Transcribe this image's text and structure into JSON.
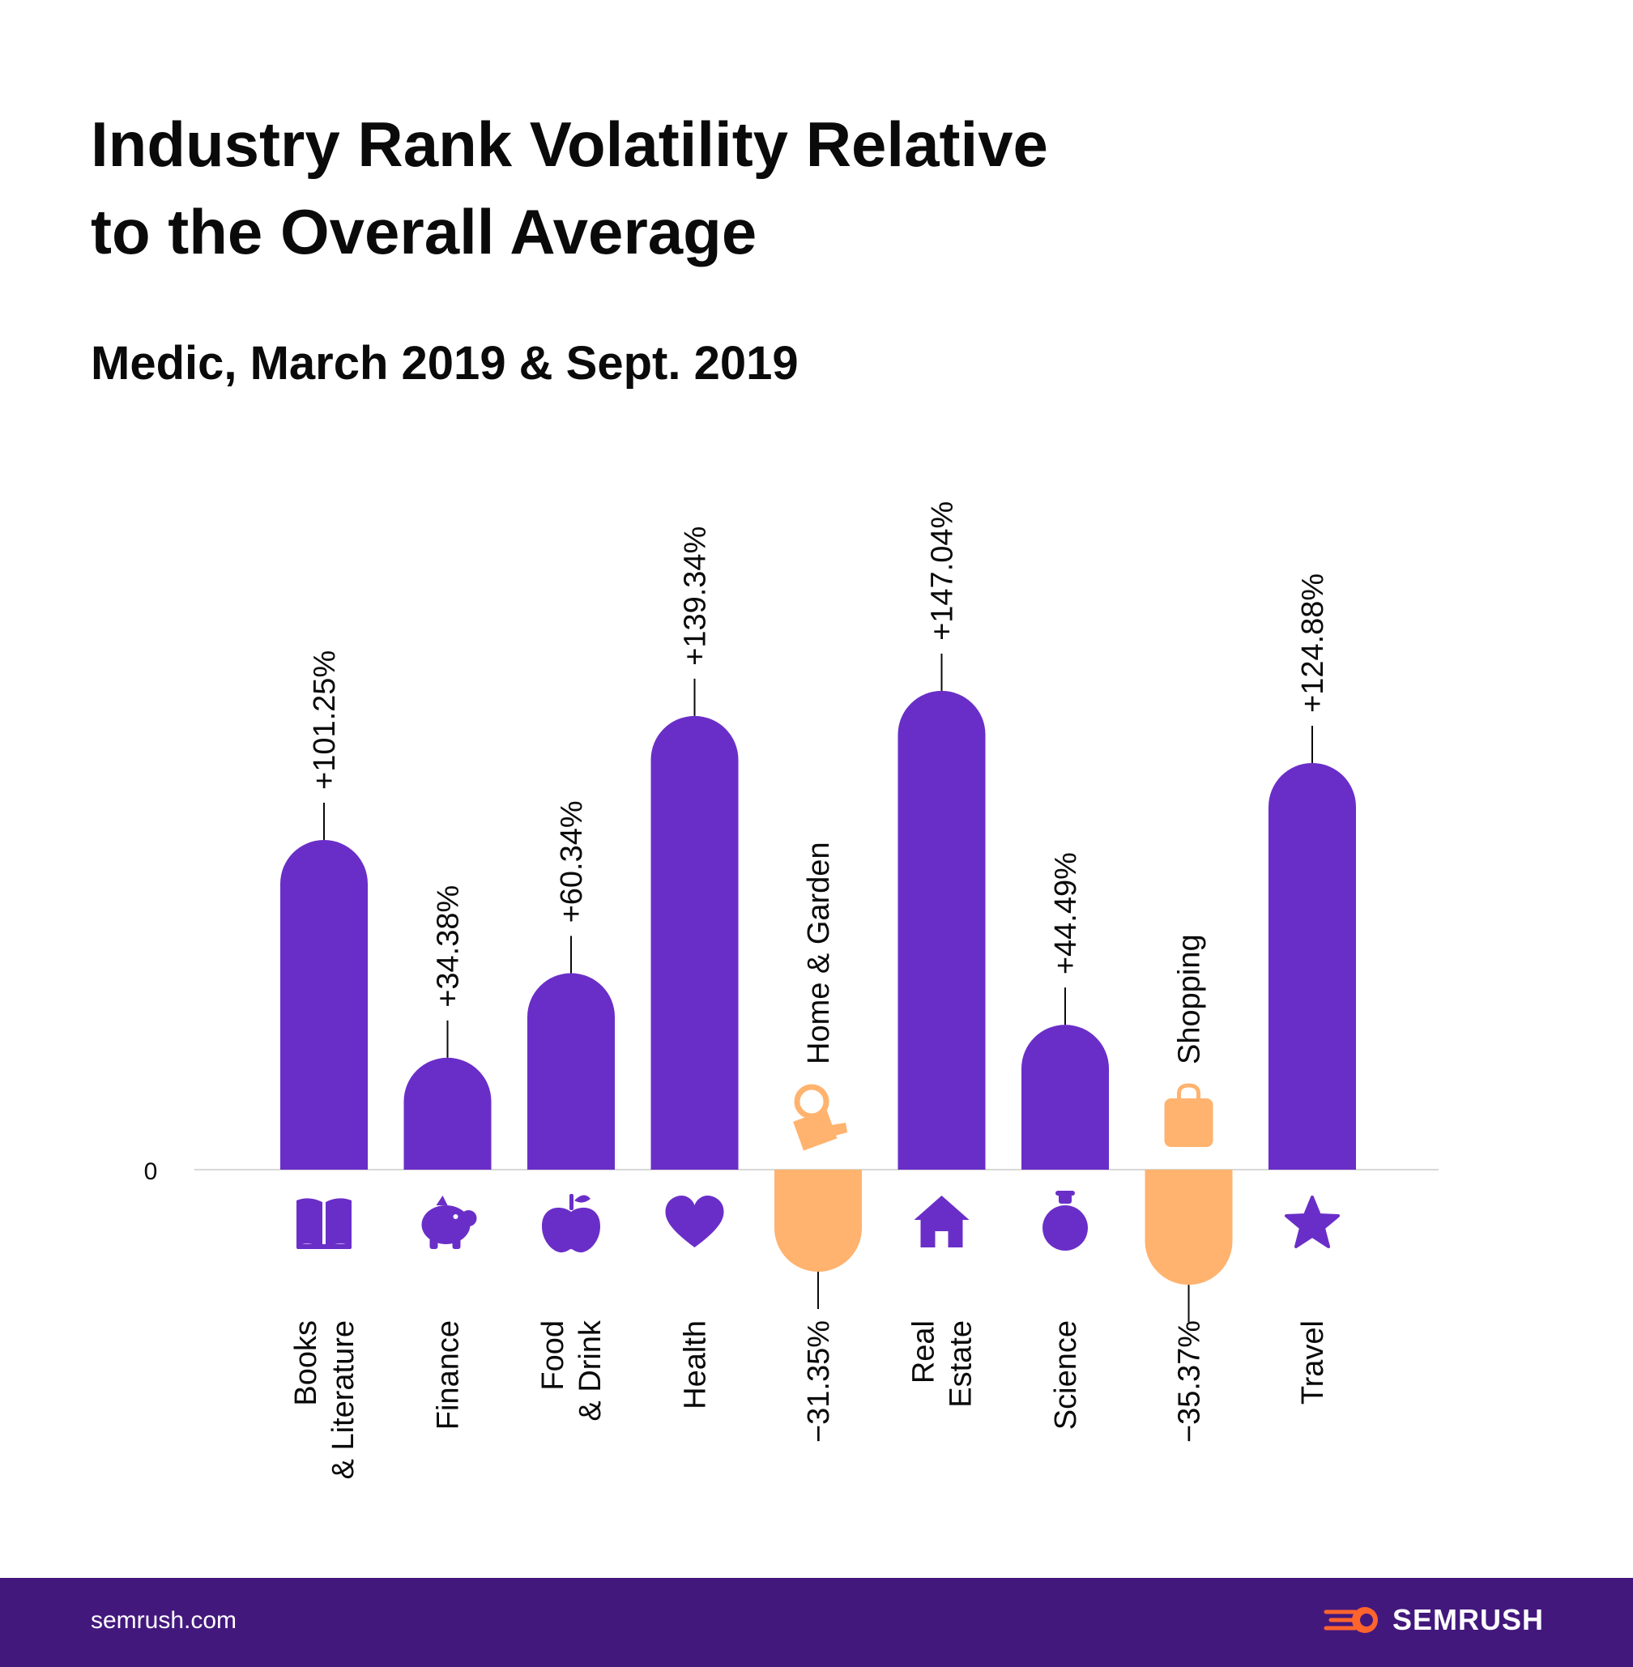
{
  "chart_data": {
    "type": "bar",
    "title_lines": [
      "Industry Rank Volatility Relative",
      "to the Overall Average"
    ],
    "subtitle": "Medic, March 2019 & Sept. 2019",
    "zero_label": "0",
    "ylim": [
      -40,
      160
    ],
    "positive_color": "#6a2ec8",
    "negative_color": "#ffb36e",
    "categories": [
      {
        "label": [
          "Books",
          "& Literature"
        ],
        "value": 101.25,
        "value_label": "+101.25%",
        "icon": "book-icon"
      },
      {
        "label": [
          "Finance"
        ],
        "value": 34.38,
        "value_label": "+34.38%",
        "icon": "piggy-bank-icon"
      },
      {
        "label": [
          "Food",
          "& Drink"
        ],
        "value": 60.34,
        "value_label": "+60.34%",
        "icon": "apple-icon"
      },
      {
        "label": [
          "Health"
        ],
        "value": 139.34,
        "value_label": "+139.34%",
        "icon": "heart-icon"
      },
      {
        "label": [
          "Home & Garden"
        ],
        "value": -31.35,
        "value_label": "−31.35%",
        "icon": "watering-can-icon"
      },
      {
        "label": [
          "Real",
          "Estate"
        ],
        "value": 147.04,
        "value_label": "+147.04%",
        "icon": "house-icon"
      },
      {
        "label": [
          "Science"
        ],
        "value": 44.49,
        "value_label": "+44.49%",
        "icon": "flask-icon"
      },
      {
        "label": [
          "Shopping"
        ],
        "value": -35.37,
        "value_label": "−35.37%",
        "icon": "shopping-bag-icon"
      },
      {
        "label": [
          "Travel"
        ],
        "value": 124.88,
        "value_label": "+124.88%",
        "icon": "star-icon"
      }
    ]
  },
  "footer": {
    "url": "semrush.com",
    "brand": "SEMRUSH",
    "background": "#43187d"
  }
}
